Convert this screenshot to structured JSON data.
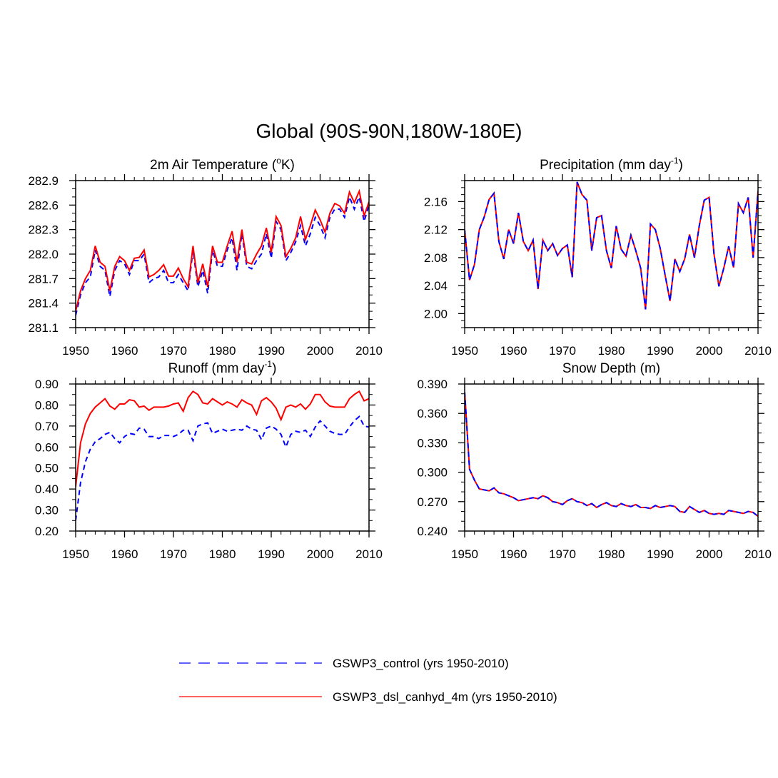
{
  "figure": {
    "title": "Global (90S-90N,180W-180E)",
    "colors": {
      "control": "#0000ff",
      "experiment": "#ff0000",
      "axis": "#000000"
    }
  },
  "legend": {
    "items": [
      {
        "label": "GSWP3_control (yrs 1950-2010)",
        "color": "#0000ff",
        "style": "dashed"
      },
      {
        "label": "GSWP3_dsl_canhyd_4m (yrs 1950-2010)",
        "color": "#ff0000",
        "style": "solid"
      }
    ]
  },
  "chart_data": [
    {
      "id": "temp",
      "type": "line",
      "title": "2m Air Temperature (",
      "title_sup": "o",
      "title_tail": "K)",
      "xlim": [
        1950,
        2010
      ],
      "ylim": [
        281.1,
        282.9
      ],
      "xticks": [
        1950,
        1960,
        1970,
        1980,
        1990,
        2000,
        2010
      ],
      "xtick_labels": [
        "1950",
        "1960",
        "1970",
        "1980",
        "1990",
        "2000",
        "2010"
      ],
      "yticks": [
        281.1,
        281.4,
        281.7,
        282.0,
        282.3,
        282.6,
        282.9
      ],
      "ytick_labels": [
        "281.1",
        "281.4",
        "281.7",
        "282.0",
        "282.3",
        "282.6",
        "282.9"
      ],
      "yminor": 0.1,
      "x_start": 1950,
      "series": [
        {
          "name": "GSWP3_control",
          "values": [
            281.25,
            281.5,
            281.65,
            281.72,
            282.05,
            281.85,
            281.8,
            281.48,
            281.8,
            281.92,
            281.88,
            281.75,
            281.92,
            281.92,
            282.0,
            281.65,
            281.7,
            281.72,
            281.8,
            281.65,
            281.65,
            281.75,
            281.65,
            281.55,
            282.05,
            281.6,
            281.8,
            281.52,
            282.05,
            281.85,
            281.85,
            282.05,
            282.2,
            281.8,
            282.25,
            281.85,
            281.82,
            281.92,
            282.0,
            282.25,
            281.95,
            282.4,
            282.3,
            281.92,
            282.02,
            282.15,
            282.35,
            282.1,
            282.25,
            282.45,
            282.35,
            282.2,
            282.45,
            282.55,
            282.55,
            282.45,
            282.7,
            282.55,
            282.7,
            282.4,
            282.6
          ]
        },
        {
          "name": "GSWP3_dsl_canhyd_4m",
          "values": [
            281.3,
            281.55,
            281.7,
            281.8,
            282.1,
            281.9,
            281.85,
            281.55,
            281.85,
            281.97,
            281.92,
            281.8,
            281.95,
            281.96,
            282.05,
            281.72,
            281.75,
            281.8,
            281.87,
            281.73,
            281.73,
            281.83,
            281.7,
            281.6,
            282.1,
            281.65,
            281.88,
            281.6,
            282.1,
            281.9,
            281.9,
            282.1,
            282.28,
            281.9,
            282.3,
            281.9,
            281.88,
            282.0,
            282.1,
            282.32,
            282.02,
            282.46,
            282.35,
            281.97,
            282.07,
            282.2,
            282.46,
            282.18,
            282.35,
            282.54,
            282.42,
            282.27,
            282.5,
            282.62,
            282.59,
            282.5,
            282.76,
            282.63,
            282.77,
            282.47,
            282.64
          ]
        }
      ]
    },
    {
      "id": "precip",
      "type": "line",
      "title": "Precipitation (mm day",
      "title_sup": "-1",
      "title_tail": ")",
      "xlim": [
        1950,
        2010
      ],
      "ylim": [
        1.98,
        2.19
      ],
      "xticks": [
        1950,
        1960,
        1970,
        1980,
        1990,
        2000,
        2010
      ],
      "xtick_labels": [
        "1950",
        "1960",
        "1970",
        "1980",
        "1990",
        "2000",
        "2010"
      ],
      "yticks": [
        2.0,
        2.04,
        2.08,
        2.12,
        2.16
      ],
      "ytick_labels": [
        "2.00",
        "2.04",
        "2.08",
        "2.12",
        "2.16"
      ],
      "yminor": 0.01,
      "x_start": 1950,
      "series": [
        {
          "name": "GSWP3_control",
          "values": [
            2.12,
            2.048,
            2.07,
            2.12,
            2.138,
            2.163,
            2.172,
            2.103,
            2.078,
            2.12,
            2.1,
            2.144,
            2.103,
            2.09,
            2.105,
            2.035,
            2.105,
            2.09,
            2.1,
            2.083,
            2.093,
            2.098,
            2.052,
            2.188,
            2.17,
            2.162,
            2.09,
            2.137,
            2.14,
            2.09,
            2.065,
            2.125,
            2.092,
            2.082,
            2.112,
            2.09,
            2.065,
            2.006,
            2.128,
            2.12,
            2.093,
            2.055,
            2.018,
            2.078,
            2.06,
            2.078,
            2.113,
            2.08,
            2.126,
            2.162,
            2.166,
            2.085,
            2.039,
            2.065,
            2.096,
            2.066,
            2.157,
            2.144,
            2.166,
            2.08,
            2.175
          ]
        },
        {
          "name": "GSWP3_dsl_canhyd_4m",
          "values": [
            2.12,
            2.048,
            2.07,
            2.12,
            2.138,
            2.163,
            2.172,
            2.103,
            2.078,
            2.12,
            2.1,
            2.144,
            2.103,
            2.09,
            2.105,
            2.035,
            2.105,
            2.09,
            2.1,
            2.083,
            2.093,
            2.098,
            2.052,
            2.188,
            2.17,
            2.162,
            2.09,
            2.137,
            2.14,
            2.09,
            2.065,
            2.125,
            2.092,
            2.082,
            2.112,
            2.09,
            2.065,
            2.006,
            2.128,
            2.12,
            2.093,
            2.055,
            2.018,
            2.078,
            2.06,
            2.078,
            2.113,
            2.08,
            2.126,
            2.162,
            2.166,
            2.085,
            2.039,
            2.065,
            2.096,
            2.066,
            2.157,
            2.144,
            2.166,
            2.08,
            2.175
          ]
        }
      ]
    },
    {
      "id": "runoff",
      "type": "line",
      "title": "Runoff (mm day",
      "title_sup": "-1",
      "title_tail": ")",
      "xlim": [
        1950,
        2010
      ],
      "ylim": [
        0.2,
        0.9
      ],
      "xticks": [
        1950,
        1960,
        1970,
        1980,
        1990,
        2000,
        2010
      ],
      "xtick_labels": [
        "1950",
        "1960",
        "1970",
        "1980",
        "1990",
        "2000",
        "2010"
      ],
      "yticks": [
        0.2,
        0.3,
        0.4,
        0.5,
        0.6,
        0.7,
        0.8,
        0.9
      ],
      "ytick_labels": [
        "0.20",
        "0.30",
        "0.40",
        "0.50",
        "0.60",
        "0.70",
        "0.80",
        "0.90"
      ],
      "yminor": 0.05,
      "x_start": 1950,
      "series": [
        {
          "name": "GSWP3_control",
          "values": [
            0.25,
            0.43,
            0.53,
            0.59,
            0.625,
            0.64,
            0.66,
            0.67,
            0.64,
            0.62,
            0.65,
            0.665,
            0.66,
            0.69,
            0.685,
            0.65,
            0.65,
            0.64,
            0.655,
            0.655,
            0.65,
            0.66,
            0.68,
            0.68,
            0.63,
            0.7,
            0.71,
            0.715,
            0.665,
            0.675,
            0.685,
            0.675,
            0.68,
            0.685,
            0.68,
            0.7,
            0.685,
            0.68,
            0.635,
            0.69,
            0.7,
            0.685,
            0.66,
            0.6,
            0.66,
            0.675,
            0.67,
            0.68,
            0.65,
            0.695,
            0.725,
            0.7,
            0.675,
            0.665,
            0.66,
            0.66,
            0.695,
            0.725,
            0.745,
            0.7,
            0.695
          ]
        },
        {
          "name": "GSWP3_dsl_canhyd_4m",
          "values": [
            0.41,
            0.62,
            0.71,
            0.76,
            0.79,
            0.81,
            0.83,
            0.795,
            0.78,
            0.805,
            0.805,
            0.825,
            0.82,
            0.79,
            0.795,
            0.775,
            0.79,
            0.79,
            0.79,
            0.795,
            0.805,
            0.81,
            0.77,
            0.835,
            0.865,
            0.85,
            0.81,
            0.805,
            0.83,
            0.815,
            0.8,
            0.815,
            0.805,
            0.79,
            0.825,
            0.81,
            0.8,
            0.755,
            0.82,
            0.835,
            0.815,
            0.785,
            0.73,
            0.79,
            0.8,
            0.79,
            0.805,
            0.78,
            0.805,
            0.85,
            0.85,
            0.815,
            0.795,
            0.79,
            0.79,
            0.79,
            0.83,
            0.85,
            0.865,
            0.82,
            0.83
          ]
        }
      ]
    },
    {
      "id": "snow",
      "type": "line",
      "title": "Snow Depth (m)",
      "title_sup": "",
      "title_tail": "",
      "xlim": [
        1950,
        2010
      ],
      "ylim": [
        0.24,
        0.39
      ],
      "xticks": [
        1950,
        1960,
        1970,
        1980,
        1990,
        2000,
        2010
      ],
      "xtick_labels": [
        "1950",
        "1960",
        "1970",
        "1980",
        "1990",
        "2000",
        "2010"
      ],
      "yticks": [
        0.24,
        0.27,
        0.3,
        0.33,
        0.36,
        0.39
      ],
      "ytick_labels": [
        "0.240",
        "0.270",
        "0.300",
        "0.330",
        "0.360",
        "0.390"
      ],
      "yminor": 0.01,
      "x_start": 1950,
      "series": [
        {
          "name": "GSWP3_control",
          "values": [
            0.382,
            0.303,
            0.292,
            0.283,
            0.282,
            0.281,
            0.284,
            0.279,
            0.278,
            0.276,
            0.274,
            0.271,
            0.272,
            0.273,
            0.274,
            0.273,
            0.276,
            0.274,
            0.27,
            0.269,
            0.267,
            0.271,
            0.273,
            0.27,
            0.269,
            0.266,
            0.268,
            0.264,
            0.267,
            0.269,
            0.266,
            0.265,
            0.268,
            0.266,
            0.265,
            0.267,
            0.264,
            0.264,
            0.263,
            0.266,
            0.264,
            0.265,
            0.266,
            0.265,
            0.26,
            0.259,
            0.265,
            0.262,
            0.259,
            0.261,
            0.258,
            0.257,
            0.258,
            0.257,
            0.261,
            0.26,
            0.259,
            0.258,
            0.26,
            0.259,
            0.255
          ]
        },
        {
          "name": "GSWP3_dsl_canhyd_4m",
          "values": [
            0.382,
            0.303,
            0.292,
            0.283,
            0.282,
            0.281,
            0.284,
            0.279,
            0.278,
            0.276,
            0.274,
            0.271,
            0.272,
            0.273,
            0.274,
            0.273,
            0.276,
            0.274,
            0.27,
            0.269,
            0.267,
            0.271,
            0.273,
            0.27,
            0.269,
            0.266,
            0.268,
            0.264,
            0.267,
            0.269,
            0.266,
            0.265,
            0.268,
            0.266,
            0.265,
            0.267,
            0.264,
            0.264,
            0.263,
            0.266,
            0.264,
            0.265,
            0.266,
            0.265,
            0.26,
            0.259,
            0.265,
            0.262,
            0.259,
            0.261,
            0.258,
            0.257,
            0.258,
            0.257,
            0.261,
            0.26,
            0.259,
            0.258,
            0.26,
            0.259,
            0.255
          ]
        }
      ]
    }
  ]
}
